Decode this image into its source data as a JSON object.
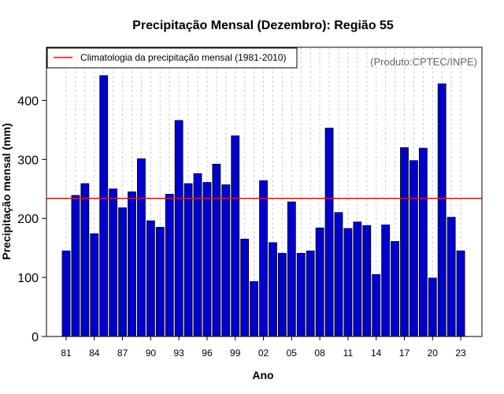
{
  "chart_data": {
    "type": "bar",
    "title": "Precipitação Mensal (Dezembro): Região 55",
    "xlabel": "Ano",
    "ylabel": "Precipitação mensal (mm)",
    "credit": "(Produto:CPTEC/INPE)",
    "legend": {
      "label": "Climatologia da precipitação mensal (1981-2010)",
      "position": "top-left"
    },
    "climatology": 234,
    "ylim": [
      0,
      490
    ],
    "yticks": [
      0,
      100,
      200,
      300,
      400
    ],
    "xtick_labels": [
      "81",
      "84",
      "87",
      "90",
      "93",
      "96",
      "99",
      "02",
      "05",
      "08",
      "11",
      "14",
      "17",
      "20",
      "23"
    ],
    "categories": [
      "1981",
      "1982",
      "1983",
      "1984",
      "1985",
      "1986",
      "1987",
      "1988",
      "1989",
      "1990",
      "1991",
      "1992",
      "1993",
      "1994",
      "1995",
      "1996",
      "1997",
      "1998",
      "1999",
      "2000",
      "2001",
      "2002",
      "2003",
      "2004",
      "2005",
      "2006",
      "2007",
      "2008",
      "2009",
      "2010",
      "2011",
      "2012",
      "2013",
      "2014",
      "2015",
      "2016",
      "2017",
      "2018",
      "2019",
      "2020",
      "2021",
      "2022",
      "2023"
    ],
    "values": [
      145,
      239,
      259,
      174,
      442,
      250,
      218,
      245,
      301,
      196,
      185,
      241,
      366,
      259,
      276,
      261,
      292,
      257,
      340,
      165,
      93,
      264,
      159,
      141,
      228,
      141,
      145,
      184,
      353,
      210,
      183,
      194,
      188,
      105,
      189,
      161,
      320,
      298,
      319,
      99,
      428,
      202,
      145
    ],
    "colors": {
      "bar": "#0000cc",
      "climatology": "#ff0000",
      "grid": "#cccccc"
    }
  }
}
